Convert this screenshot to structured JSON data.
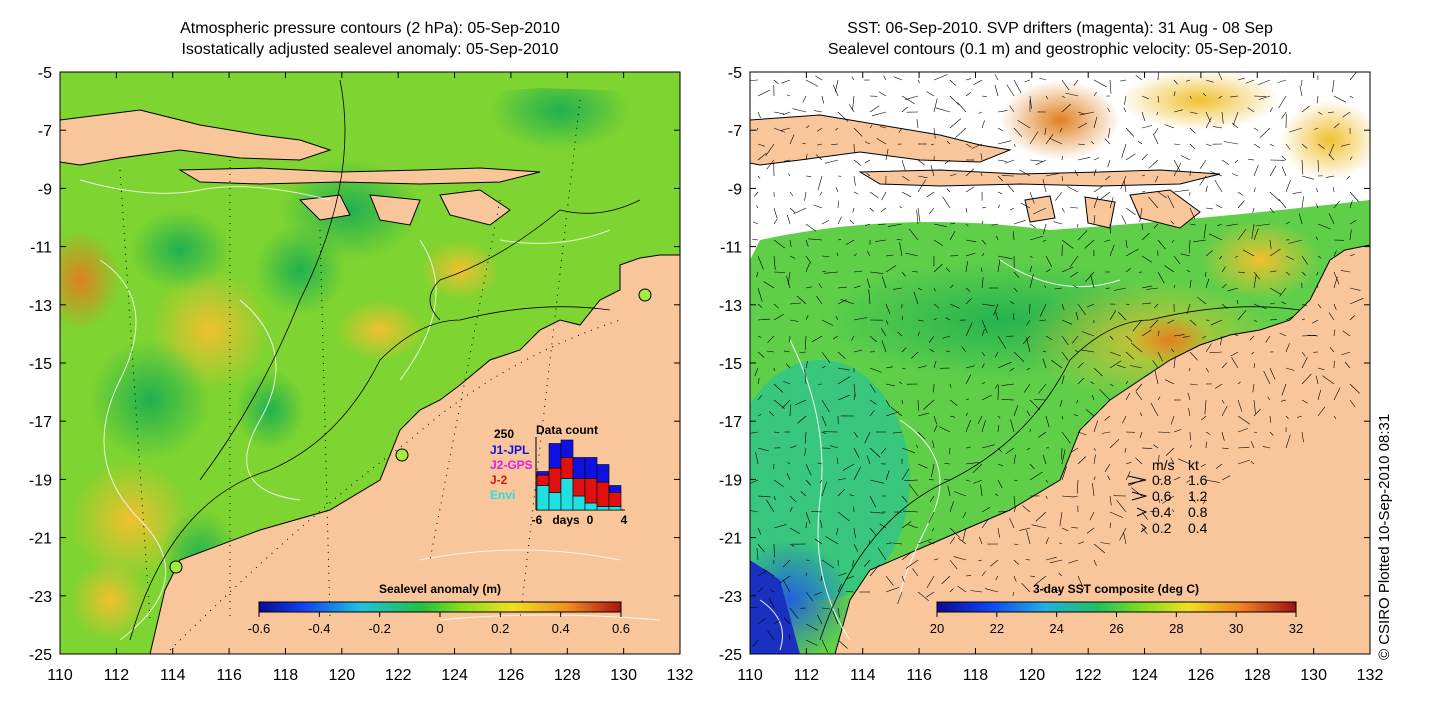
{
  "left_panel": {
    "title_line1": "Atmospheric pressure contours (2 hPa): 05-Sep-2010",
    "title_line2": "Isostatically adjusted sealevel anomaly: 05-Sep-2010",
    "colorbar": {
      "title": "Sealevel anomaly (m)",
      "ticks": [
        "-0.6",
        "-0.4",
        "-0.2",
        "0",
        "0.2",
        "0.4",
        "0.6"
      ]
    },
    "data_count": {
      "title": "Data count",
      "ymax_label": "250",
      "x_label": "days",
      "x_ticks": [
        "-6",
        "0",
        "4"
      ],
      "legend": [
        {
          "name": "J1-JPL",
          "color": "#1010e0"
        },
        {
          "name": "J2-GPS",
          "color": "#e020e0"
        },
        {
          "name": "J-2",
          "color": "#e01010"
        },
        {
          "name": "Envi",
          "color": "#20e0e0"
        }
      ],
      "bars": [
        {
          "envi": 0.35,
          "j2": 0.15,
          "j1": 0.05
        },
        {
          "envi": 0.25,
          "j2": 0.35,
          "j1": 0.35
        },
        {
          "envi": 0.45,
          "j2": 0.3,
          "j1": 0.25
        },
        {
          "envi": 0.2,
          "j2": 0.25,
          "j1": 0.3
        },
        {
          "envi": 0.1,
          "j2": 0.35,
          "j1": 0.3
        },
        {
          "envi": 0.05,
          "j2": 0.35,
          "j1": 0.25
        },
        {
          "envi": 0.05,
          "j2": 0.2,
          "j1": 0.1
        }
      ]
    }
  },
  "right_panel": {
    "title_line1": "SST: 06-Sep-2010. SVP drifters (magenta): 31 Aug - 08 Sep",
    "title_line2": "Sealevel contours (0.1 m) and geostrophic velocity: 05-Sep-2010.",
    "colorbar": {
      "title": "3-day SST composite (deg C)",
      "ticks": [
        "20",
        "22",
        "24",
        "26",
        "28",
        "30",
        "32"
      ]
    },
    "velocity_legend": {
      "header_ms": "m/s",
      "header_kt": "kt",
      "rows": [
        {
          "ms": "0.8",
          "kt": "1.6"
        },
        {
          "ms": "0.6",
          "kt": "1.2"
        },
        {
          "ms": "0.4",
          "kt": "0.8"
        },
        {
          "ms": "0.2",
          "kt": "0.4"
        }
      ]
    }
  },
  "axes": {
    "lat_ticks": [
      "-5",
      "-7",
      "-9",
      "-11",
      "-13",
      "-15",
      "-17",
      "-19",
      "-21",
      "-23",
      "-25"
    ],
    "lon_ticks": [
      "110",
      "112",
      "114",
      "116",
      "118",
      "120",
      "122",
      "124",
      "126",
      "128",
      "130",
      "132"
    ]
  },
  "copyright": "© CSIRO Plotted 10-Sep-2010 08:31",
  "colors": {
    "land": "#f9c69c",
    "ocean_green": "#5fd02a",
    "ocean_yellow": "#c8ec1a"
  }
}
